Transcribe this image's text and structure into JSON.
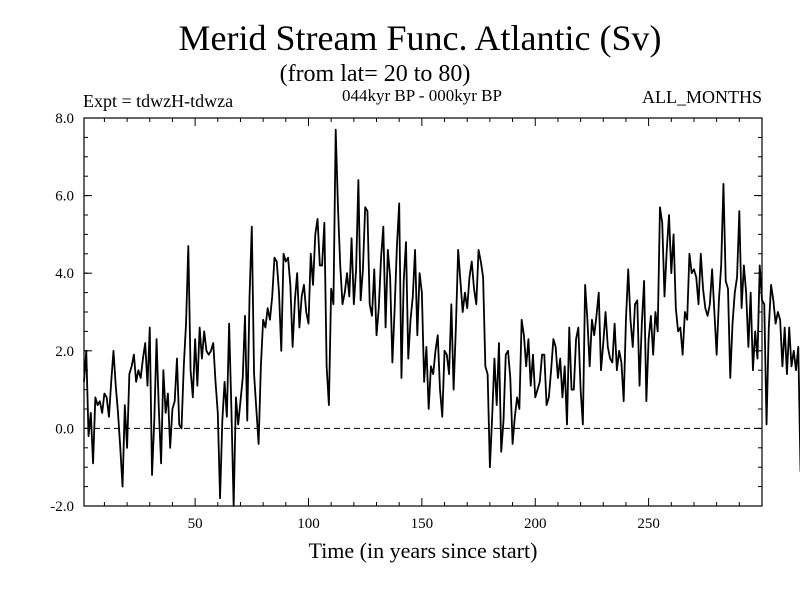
{
  "chart_data": {
    "type": "line",
    "title": "Merid Stream Func. Atlantic (Sv)",
    "subtitle": "(from lat= 20 to 80)",
    "experiment_label": "Expt = tdwzH-tdwza",
    "period_label": "044kyr BP - 000kyr BP",
    "months_label": "ALL_MONTHS",
    "xlabel": "Time (in years since start)",
    "ylabel": "",
    "xlim": [
      1,
      300
    ],
    "ylim": [
      -2.0,
      8.0
    ],
    "xticks": [
      50,
      100,
      150,
      200,
      250
    ],
    "xtick_labels": [
      "50",
      "100",
      "150",
      "200",
      "250"
    ],
    "yticks": [
      -2.0,
      0.0,
      2.0,
      4.0,
      6.0,
      8.0
    ],
    "ytick_labels": [
      "-2.0",
      "0.0",
      "2.0",
      "4.0",
      "6.0",
      "8.0"
    ],
    "reference_line": 0.0,
    "series": [
      {
        "name": "Merid Stream Func. Atlantic",
        "x_start": 1,
        "x_step": 1,
        "values": [
          1.2,
          2.0,
          -0.2,
          0.4,
          -0.9,
          0.8,
          0.6,
          0.7,
          0.4,
          0.9,
          0.8,
          0.3,
          1.2,
          2.0,
          1.1,
          0.4,
          -0.5,
          -1.5,
          0.6,
          -0.5,
          1.4,
          1.6,
          1.9,
          1.2,
          1.5,
          1.3,
          1.8,
          2.2,
          1.1,
          2.6,
          -1.2,
          0.2,
          2.3,
          0.5,
          -0.9,
          1.5,
          0.4,
          0.9,
          -0.5,
          0.5,
          0.7,
          1.8,
          0.1,
          0.0,
          1.6,
          2.7,
          4.7,
          1.5,
          0.8,
          2.3,
          1.1,
          2.6,
          1.8,
          2.5,
          2.0,
          1.9,
          2.0,
          2.2,
          1.2,
          0.4,
          -1.8,
          0.2,
          1.2,
          0.3,
          2.7,
          0.5,
          -2.0,
          0.8,
          0.1,
          0.7,
          1.3,
          2.9,
          0.2,
          3.4,
          5.2,
          1.4,
          0.5,
          -0.4,
          1.6,
          2.8,
          2.6,
          3.1,
          2.8,
          3.4,
          4.4,
          4.3,
          3.5,
          2.0,
          4.5,
          4.3,
          4.4,
          3.7,
          2.1,
          3.3,
          4.0,
          2.6,
          3.4,
          3.7,
          3.0,
          2.7,
          4.5,
          3.7,
          5.0,
          5.4,
          4.2,
          4.2,
          5.3,
          1.6,
          0.6,
          3.6,
          3.2,
          7.7,
          5.7,
          4.2,
          3.2,
          3.5,
          4.0,
          3.4,
          4.9,
          3.2,
          4.1,
          6.4,
          3.3,
          4.1,
          5.7,
          5.6,
          3.2,
          2.9,
          4.1,
          2.4,
          3.1,
          4.4,
          5.2,
          2.6,
          4.6,
          3.9,
          1.7,
          3.1,
          4.7,
          5.8,
          1.3,
          3.8,
          4.8,
          1.8,
          2.8,
          3.4,
          4.6,
          2.4,
          4.0,
          3.5,
          1.2,
          2.1,
          0.5,
          1.6,
          1.4,
          2.0,
          2.4,
          1.0,
          0.3,
          2.0,
          1.9,
          1.4,
          3.2,
          1.0,
          2.6,
          4.6,
          3.8,
          3.0,
          3.5,
          3.1,
          3.9,
          4.3,
          3.6,
          3.2,
          4.6,
          4.3,
          3.9,
          1.6,
          1.4,
          -1.0,
          0.3,
          1.8,
          0.6,
          2.2,
          -0.6,
          0.2,
          1.9,
          2.0,
          1.3,
          -0.4,
          0.3,
          0.8,
          0.5,
          2.8,
          2.4,
          1.6,
          2.3,
          1.1,
          1.9,
          0.8,
          1.0,
          1.2,
          1.9,
          1.9,
          0.6,
          0.8,
          1.5,
          2.3,
          2.1,
          1.3,
          1.8,
          0.8,
          1.6,
          0.1,
          2.6,
          1.0,
          1.0,
          2.3,
          2.6,
          1.0,
          0.1,
          3.7,
          2.8,
          1.6,
          2.8,
          2.4,
          2.9,
          3.5,
          1.5,
          2.2,
          3.0,
          2.1,
          1.8,
          1.7,
          2.7,
          1.5,
          2.0,
          1.7,
          0.7,
          2.8,
          4.1,
          2.8,
          2.1,
          3.2,
          3.3,
          1.1,
          2.7,
          3.8,
          0.7,
          2.3,
          2.9,
          1.9,
          3.0,
          2.5,
          5.7,
          5.3,
          3.4,
          4.6,
          5.5,
          4.0,
          5.0,
          3.1,
          2.5,
          2.6,
          1.9,
          3.0,
          2.8,
          4.5,
          4.0,
          4.1,
          3.9,
          3.2,
          4.5,
          3.6,
          3.1,
          2.9,
          3.2,
          4.1,
          3.0,
          1.9,
          3.3,
          4.2,
          6.3,
          3.8,
          3.6,
          1.3,
          2.7,
          3.5,
          3.9,
          5.6,
          3.1,
          4.2,
          3.5,
          2.1,
          3.5,
          1.5,
          2.5,
          1.8,
          4.2,
          3.3,
          3.2,
          0.1,
          2.6,
          3.7,
          3.3,
          2.7,
          3.0,
          2.8,
          1.6,
          2.6,
          1.4,
          2.6,
          1.6,
          2.0,
          1.5,
          2.1,
          -1.1,
          2.5,
          2.0,
          3.1,
          3.7
        ]
      }
    ]
  }
}
